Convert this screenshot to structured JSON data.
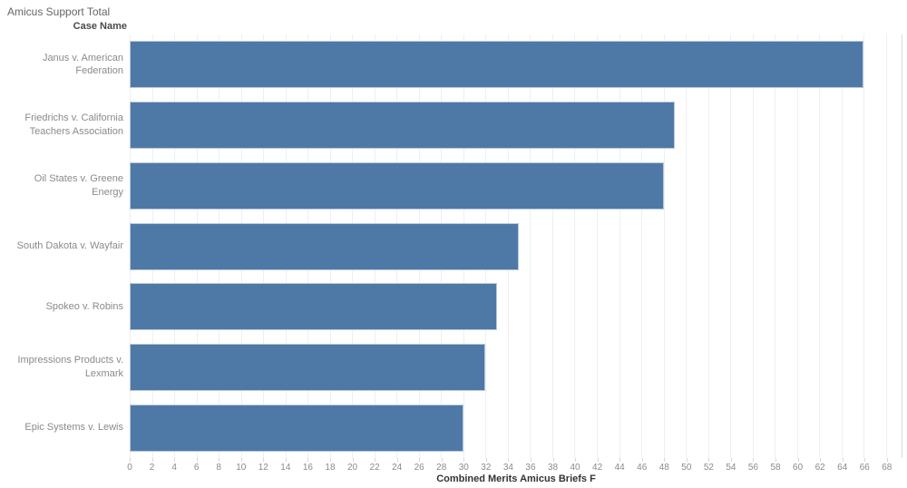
{
  "title": "Amicus Support Total",
  "colors": {
    "bar": "#4e79a7",
    "bar_border": "#b9c9dc",
    "gridline": "#efefef",
    "tick": "#d7d7d7",
    "pane_border": "#d9d9d9",
    "title_text": "#666666",
    "row_label_text": "#8a8a8a",
    "header_text": "#4a4a4a",
    "axis_title_text": "#333333"
  },
  "chart_data": {
    "type": "bar",
    "orientation": "horizontal",
    "title": "Amicus Support Total",
    "row_header": "Case Name",
    "xlabel": "Combined Merits Amicus Briefs F",
    "categories": [
      "Janus v. American Federation",
      "Friedrichs v. California Teachers Association",
      "Oil States v. Greene Energy",
      "South Dakota v. Wayfair",
      "Spokeo v. Robins",
      "Impressions Products v. Lexmark",
      "Epic Systems v. Lewis"
    ],
    "values": [
      66,
      49,
      48,
      35,
      33,
      32,
      30
    ],
    "xlim": [
      0,
      69.4
    ],
    "xticks": [
      0,
      2,
      4,
      6,
      8,
      10,
      12,
      14,
      16,
      18,
      20,
      22,
      24,
      26,
      28,
      30,
      32,
      34,
      36,
      38,
      40,
      42,
      44,
      46,
      48,
      50,
      52,
      54,
      56,
      58,
      60,
      62,
      64,
      66,
      68
    ],
    "grid": true,
    "legend": false
  }
}
